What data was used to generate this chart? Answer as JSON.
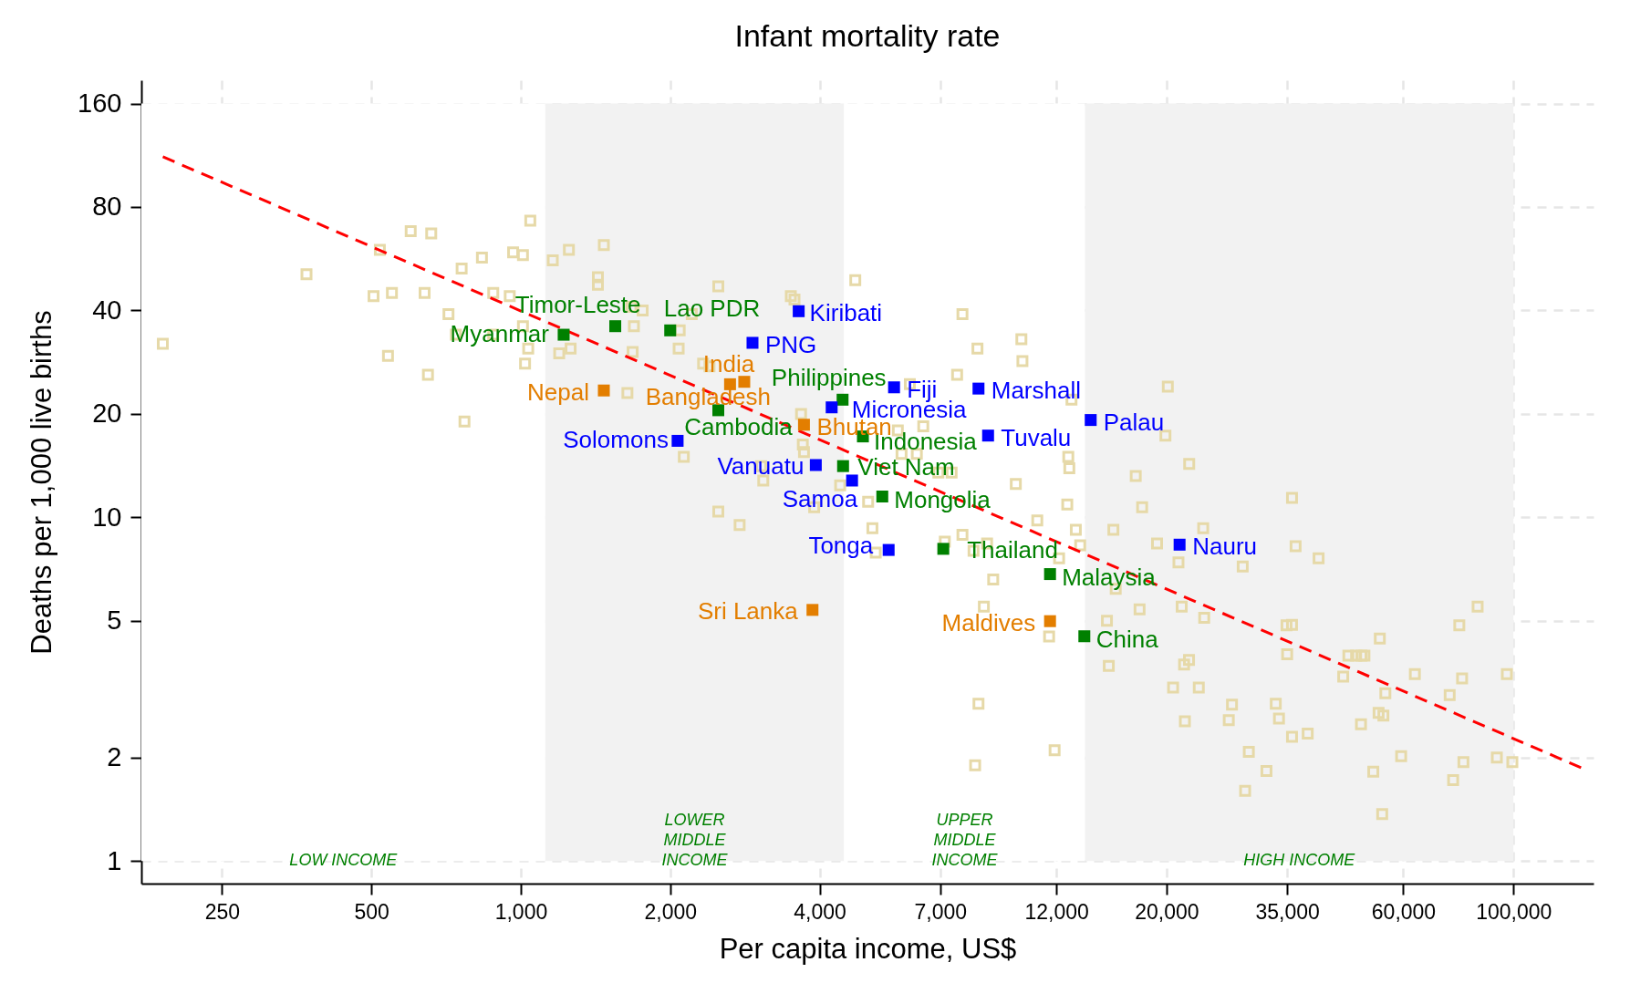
{
  "chart_data": {
    "type": "scatter",
    "title": "Infant mortality rate",
    "xlabel": "Per capita income, US$",
    "ylabel": "Deaths per 1,000 live births",
    "log": "xy",
    "grid": true,
    "marker": "square",
    "xlim": [
      172,
      145000
    ],
    "xticks": [
      250,
      500,
      {
        "value": 1000,
        "label": "1,000"
      },
      {
        "value": 2000,
        "label": "2,000"
      },
      {
        "value": 4000,
        "label": "4,000"
      },
      {
        "value": 7000,
        "label": "7,000"
      },
      {
        "value": 12000,
        "label": "12,000"
      },
      {
        "value": 20000,
        "label": "20,000"
      },
      {
        "value": 35000,
        "label": "35,000"
      },
      {
        "value": 60000,
        "label": "60,000"
      },
      {
        "value": 100000,
        "label": "100,000"
      }
    ],
    "ylim": [
      0.86,
      187
    ],
    "yticks": [
      1,
      2,
      5,
      10,
      20,
      40,
      80,
      160
    ],
    "bands": [
      {
        "axis": "x",
        "from": 172,
        "to": 1120,
        "label": "LOW INCOME",
        "color": "#ffffff"
      },
      {
        "axis": "x",
        "from": 1120,
        "to": 4480,
        "label": "LOWER\nMIDDLE\nINCOME",
        "color": "#f2f2f2"
      },
      {
        "axis": "x",
        "from": 4480,
        "to": 13700,
        "label": "UPPER\nMIDDLE\nINCOME",
        "color": "#ffffff"
      },
      {
        "axis": "x",
        "from": 13700,
        "to": 100000,
        "label": "HIGH INCOME",
        "color": "#f2f2f2"
      }
    ],
    "series": [
      {
        "color": "#e6d9a8",
        "x": [
          190,
          370,
          520,
          505,
          550,
          540,
          600,
          640,
          660,
          650,
          715,
          760,
          770,
          835,
          880,
          965,
          1010,
          1045,
          1020,
          1035,
          1160,
          1250,
          1260,
          1195,
          1430,
          1430,
          1470,
          1640,
          1690,
          1670,
          1760,
          2090,
          2080,
          2130,
          2210,
          2500,
          2500,
          2760,
          3500,
          3560,
          3670,
          3700,
          3720,
          3050,
          3080,
          4400,
          4720,
          5010,
          5110,
          5190,
          5750,
          6470,
          7570,
          7760,
          7760,
          8320,
          8570,
          8360,
          8230,
          8950,
          9940,
          10200,
          10250,
          10980,
          11900,
          12680,
          12740,
          12620,
          12870,
          13130,
          13400,
          11600,
          15170,
          15300,
          15630,
          17340,
          17860,
          17650,
          19140,
          20120,
          19900,
          20620,
          21140,
          21460,
          22200,
          21700,
          22220,
          23230,
          23710,
          23820,
          21780,
          27100,
          26700,
          28480,
          29300,
          28800,
          31800,
          33200,
          33700,
          35800,
          38500,
          45400,
          55200,
          53500,
          54700,
          49300,
          59400,
          52200,
          54400,
          63300,
          78800,
          74400,
          97000,
          79300,
          75600,
          92600,
          99500,
          35800,
          36400,
          40500,
          15800,
          34900,
          35800,
          35000,
          53800,
          46500,
          48200,
          49400,
          50100,
          77800,
          84700,
          1680,
          2330,
          2400,
          6080,
          5850,
          6280,
          7380,
          6940,
          3900,
          7150,
          8170,
          8700,
          12150,
          950,
          1010,
          740,
          880
        ],
        "values": [
          32,
          51,
          60,
          44,
          45,
          29.5,
          68,
          45,
          67,
          26,
          39,
          53,
          19,
          57,
          45,
          59,
          58,
          73,
          28,
          31,
          56,
          60,
          31,
          30,
          50,
          47.5,
          62,
          23,
          36,
          41,
          40,
          35,
          31,
          15,
          39,
          47,
          10.4,
          9.5,
          44,
          43,
          20,
          16.3,
          15.5,
          14.1,
          12.8,
          12.4,
          49,
          11.1,
          9.3,
          7.9,
          17.9,
          18.4,
          26,
          39,
          8.9,
          31,
          5.5,
          2.87,
          1.9,
          6.6,
          12.5,
          33,
          28.5,
          9.8,
          2.1,
          15,
          13.9,
          10.9,
          22,
          9.2,
          8.3,
          4.5,
          5,
          3.7,
          9.2,
          13.2,
          10.7,
          5.4,
          8.4,
          24,
          17.3,
          3.2,
          7.4,
          5.5,
          3.85,
          3.73,
          14.3,
          3.2,
          9.3,
          5.1,
          2.55,
          2.85,
          2.57,
          7.2,
          2.08,
          1.6,
          1.83,
          2.87,
          2.6,
          2.3,
          2.35,
          3.44,
          3.08,
          2.7,
          2.65,
          2.5,
          2.02,
          1.82,
          1.37,
          3.5,
          3.4,
          3.04,
          3.5,
          1.94,
          1.72,
          2,
          1.94,
          11.4,
          8.25,
          7.6,
          6.2,
          4.85,
          4.87,
          4,
          4.44,
          3.96,
          3.96,
          3.96,
          3.96,
          4.85,
          5.5,
          30.3,
          28,
          27.5,
          24.4,
          15.3,
          15.3,
          13.5,
          13.5,
          10.7,
          8.5,
          8,
          8.4,
          7.6,
          44,
          36,
          34,
          34
        ]
      },
      {
        "type": "line",
        "color": "#ff0000",
        "line_style": "dashed",
        "marker": "none",
        "x": [
          190,
          138000
        ],
        "values": [
          112,
          1.86
        ]
      },
      {
        "color": "#008000",
        "x": [
          1220,
          1550,
          2000,
          4450,
          2500,
          4890,
          4460,
          5350,
          7100,
          11650,
          13660
        ],
        "values": [
          34,
          36,
          35,
          22,
          20.5,
          17.2,
          14.1,
          11.5,
          8.1,
          6.84,
          4.51
        ],
        "value_labels": [
          "Myanmar",
          "Timor-Leste",
          "Lao PDR",
          "Philippines",
          "Cambodia",
          "Indonesia",
          "Viet Nam",
          "Mongolia",
          "Thailand",
          "Malaysia",
          "China"
        ]
      },
      {
        "color": "#0000ff",
        "x": [
          3630,
          2930,
          5650,
          8360,
          4230,
          14070,
          8740,
          2070,
          3930,
          4650,
          5510,
          21250
        ],
        "values": [
          39.8,
          32.2,
          23.9,
          23.7,
          20.9,
          19.2,
          17.3,
          16.7,
          14.2,
          12.8,
          8.04,
          8.33
        ],
        "value_labels": [
          "Kiribati",
          "PNG",
          "Fiji",
          "Marshall",
          "Micronesia",
          "Palau",
          "Tuvalu",
          "Solomons",
          "Vanuatu",
          "Samoa",
          "Tonga",
          "Nauru"
        ]
      },
      {
        "color": "#e37e00",
        "x": [
          1470,
          2820,
          2640,
          3720,
          3870,
          11650
        ],
        "values": [
          23.4,
          24.8,
          24.4,
          18.6,
          5.38,
          4.99
        ],
        "value_labels": [
          "Nepal",
          "India",
          "Bangladesh",
          "Bhutan",
          "Sri Lanka",
          "Maldives"
        ]
      }
    ]
  }
}
